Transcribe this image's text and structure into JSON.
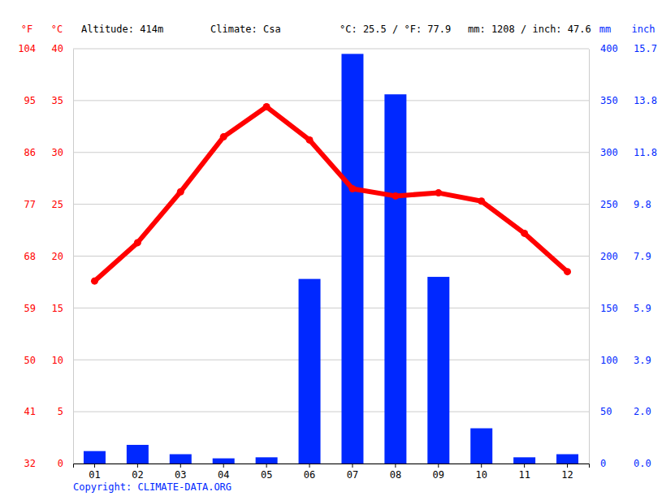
{
  "chart_data": {
    "type": "bar",
    "annotations": [
      "Altitude: 414m",
      "Climate: Csa",
      "°C: 25.5 / °F: 77.9",
      "mm: 1208 / inch: 47.6",
      "Copyright: CLIMATE-DATA.ORG"
    ],
    "ylabel": "°C",
    "ylabel_f": "°F",
    "y2label": "mm",
    "y2label_inch": "inch",
    "categories": [
      "01",
      "02",
      "03",
      "04",
      "05",
      "06",
      "07",
      "08",
      "09",
      "10",
      "11",
      "12"
    ],
    "series": [
      {
        "type": "line",
        "color": "#ff0000",
        "marker": "circle",
        "line_style": "solid",
        "values": [
          17.6,
          21.3,
          26.2,
          31.5,
          34.4,
          31.2,
          26.5,
          25.8,
          26.1,
          25.3,
          22.2,
          18.5
        ]
      },
      {
        "type": "bar",
        "color": "#0028ff",
        "axis": "y2",
        "values": [
          12,
          18,
          9,
          5,
          6,
          178,
          395,
          356,
          180,
          34,
          6,
          9
        ]
      }
    ],
    "ylim": [
      0,
      40
    ],
    "yticks": [
      0,
      5,
      10,
      15,
      20,
      25,
      30,
      35,
      40
    ],
    "yticks_f": [
      {
        "value": 0,
        "label": "32"
      },
      {
        "value": 5,
        "label": "41"
      },
      {
        "value": 10,
        "label": "50"
      },
      {
        "value": 15,
        "label": "59"
      },
      {
        "value": 20,
        "label": "68"
      },
      {
        "value": 25,
        "label": "77"
      },
      {
        "value": 30,
        "label": "86"
      },
      {
        "value": 35,
        "label": "95"
      },
      {
        "value": 40,
        "label": "104"
      }
    ],
    "y2lim": [
      0,
      400
    ],
    "y2ticks": [
      0,
      50,
      100,
      150,
      200,
      250,
      300,
      350,
      400
    ],
    "y2ticks_inch": [
      {
        "value": 0,
        "label": "0.0"
      },
      {
        "value": 50,
        "label": "2.0"
      },
      {
        "value": 100,
        "label": "3.9"
      },
      {
        "value": 150,
        "label": "5.9"
      },
      {
        "value": 200,
        "label": "7.9"
      },
      {
        "value": 250,
        "label": "9.8"
      },
      {
        "value": 300,
        "label": "11.8"
      },
      {
        "value": 350,
        "label": "13.8"
      },
      {
        "value": 400,
        "label": "15.7"
      }
    ],
    "grid": true
  }
}
